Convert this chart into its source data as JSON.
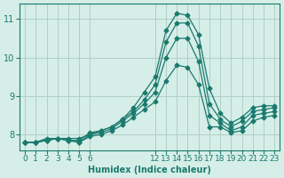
{
  "xlabel": "Humidex (Indice chaleur)",
  "ylabel": "",
  "background_color": "#d6eee8",
  "line_color": "#1a7a6e",
  "grid_color": "#b0cfc8",
  "xlim": [
    -0.5,
    23.5
  ],
  "ylim": [
    7.6,
    11.4
  ],
  "yticks": [
    8,
    9,
    10,
    11
  ],
  "xtick_labels": [
    "0",
    "1",
    "2",
    "3",
    "4",
    "5",
    "6",
    "",
    "",
    "",
    "",
    "",
    "12",
    "13",
    "14",
    "15",
    "16",
    "17",
    "18",
    "19",
    "20",
    "21",
    "22",
    "23"
  ],
  "series": [
    [
      7.8,
      7.8,
      7.9,
      7.9,
      7.9,
      7.9,
      8.0,
      8.1,
      8.2,
      8.4,
      8.7,
      9.1,
      9.5,
      10.7,
      11.15,
      11.1,
      10.6,
      9.2,
      8.55,
      8.3,
      8.45,
      8.7,
      8.75,
      8.75
    ],
    [
      7.8,
      7.8,
      7.85,
      7.9,
      7.85,
      7.85,
      8.05,
      8.1,
      8.2,
      8.4,
      8.6,
      8.9,
      9.3,
      10.4,
      10.9,
      10.9,
      10.3,
      8.8,
      8.4,
      8.2,
      8.35,
      8.6,
      8.65,
      8.7
    ],
    [
      7.8,
      7.8,
      7.85,
      7.9,
      7.85,
      7.8,
      8.0,
      8.05,
      8.15,
      8.35,
      8.55,
      8.8,
      9.1,
      10.0,
      10.5,
      10.5,
      9.9,
      8.5,
      8.3,
      8.1,
      8.2,
      8.5,
      8.55,
      8.6
    ],
    [
      7.8,
      7.8,
      7.85,
      7.9,
      7.85,
      7.8,
      7.95,
      8.0,
      8.1,
      8.25,
      8.45,
      8.65,
      8.85,
      9.4,
      9.8,
      9.75,
      9.3,
      8.2,
      8.2,
      8.05,
      8.1,
      8.35,
      8.45,
      8.5
    ]
  ]
}
